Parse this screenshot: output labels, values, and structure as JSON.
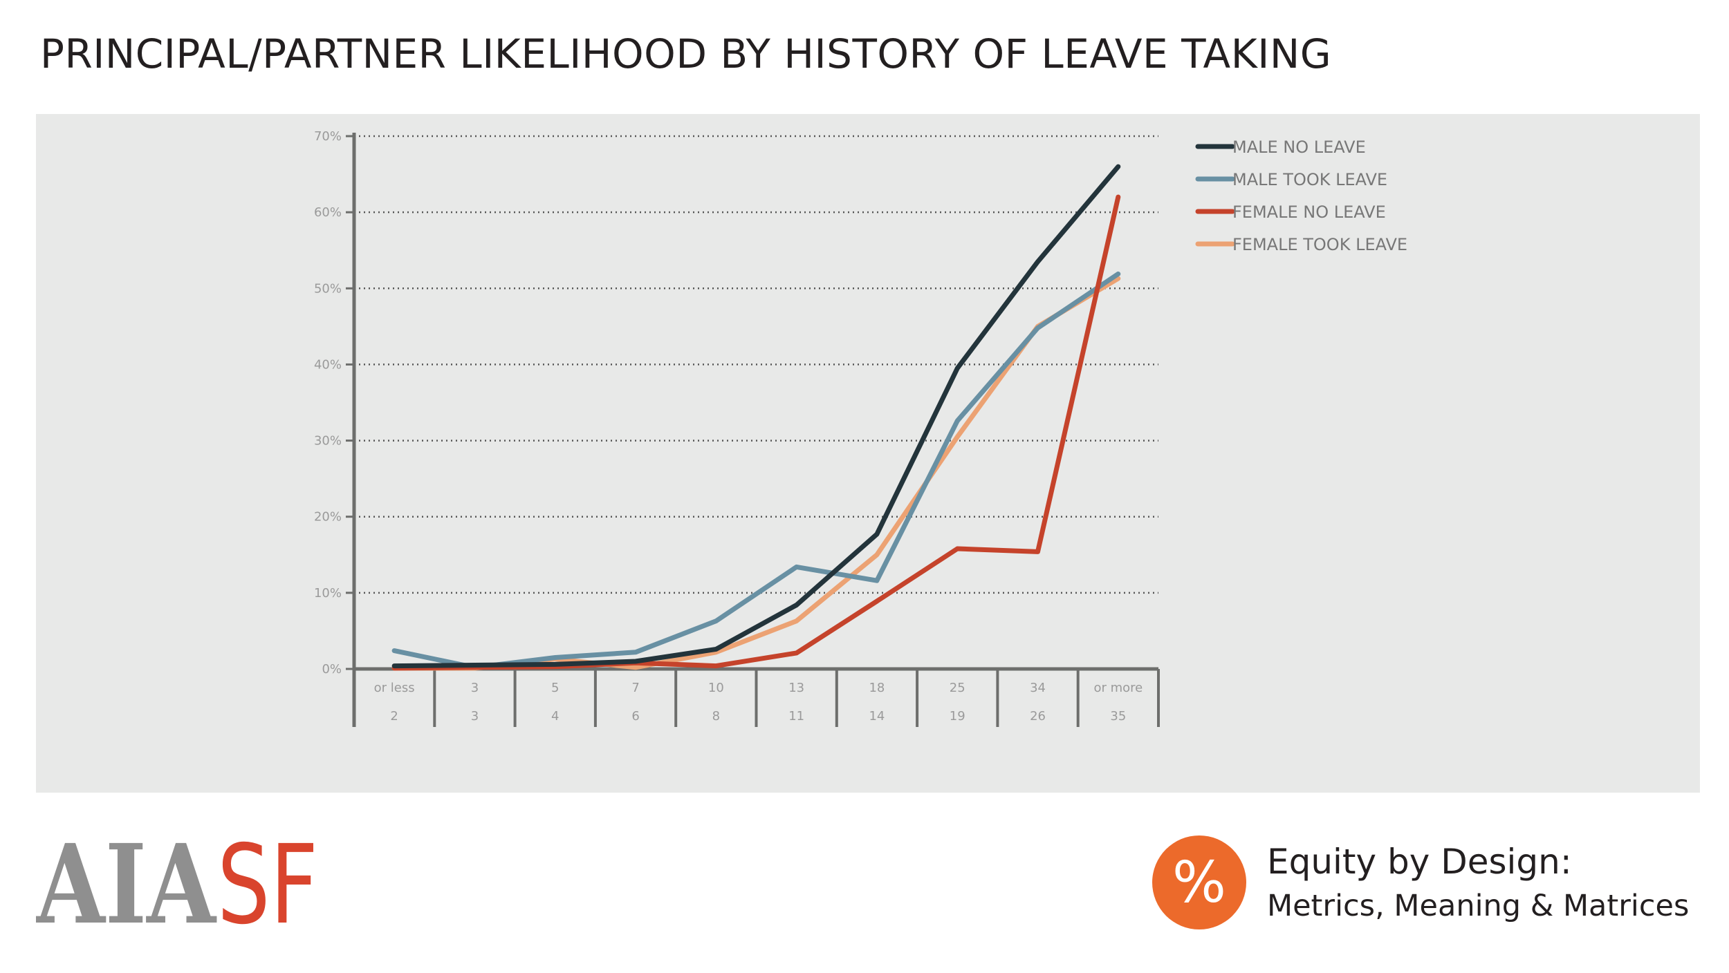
{
  "title": "PRINCIPAL/PARTNER LIKELIHOOD BY HISTORY OF LEAVE TAKING",
  "chart_data": {
    "type": "line",
    "x_top_labels": [
      "or less",
      "3",
      "5",
      "7",
      "10",
      "13",
      "18",
      "25",
      "34",
      "or more"
    ],
    "x_bottom_labels": [
      "2",
      "3",
      "4",
      "6",
      "8",
      "11",
      "14",
      "19",
      "26",
      "35"
    ],
    "y_ticks": [
      "0%",
      "10%",
      "20%",
      "30%",
      "40%",
      "50%",
      "60%",
      "70%"
    ],
    "ylim": [
      0,
      70
    ],
    "grid": "horizontal dotted",
    "legend_position": "top-right",
    "series": [
      {
        "name": "MALE NO LEAVE",
        "color": "#23343b",
        "values": [
          0.4,
          0.5,
          0.6,
          1.0,
          2.6,
          8.4,
          17.7,
          39.5,
          53.5,
          66.0
        ]
      },
      {
        "name": "MALE TOOK LEAVE",
        "color": "#6890a3",
        "values": [
          2.4,
          0.2,
          1.5,
          2.2,
          6.3,
          13.4,
          11.6,
          32.6,
          44.8,
          51.9
        ]
      },
      {
        "name": "FEMALE NO LEAVE",
        "color": "#c5432b",
        "values": [
          0.1,
          0.2,
          0.3,
          0.8,
          0.4,
          2.1,
          8.9,
          15.8,
          15.4,
          62.0
        ]
      },
      {
        "name": "FEMALE TOOK LEAVE",
        "color": "#eca273",
        "values": [
          0.1,
          0.1,
          1.3,
          0.2,
          2.2,
          6.3,
          15.0,
          30.5,
          45.0,
          51.3
        ]
      }
    ]
  },
  "footer": {
    "logo_aia": "AIA",
    "logo_sf": "SF",
    "badge": "%",
    "equity_title": "Equity by Design:",
    "equity_subtitle": "Metrics, Meaning & Matrices"
  }
}
